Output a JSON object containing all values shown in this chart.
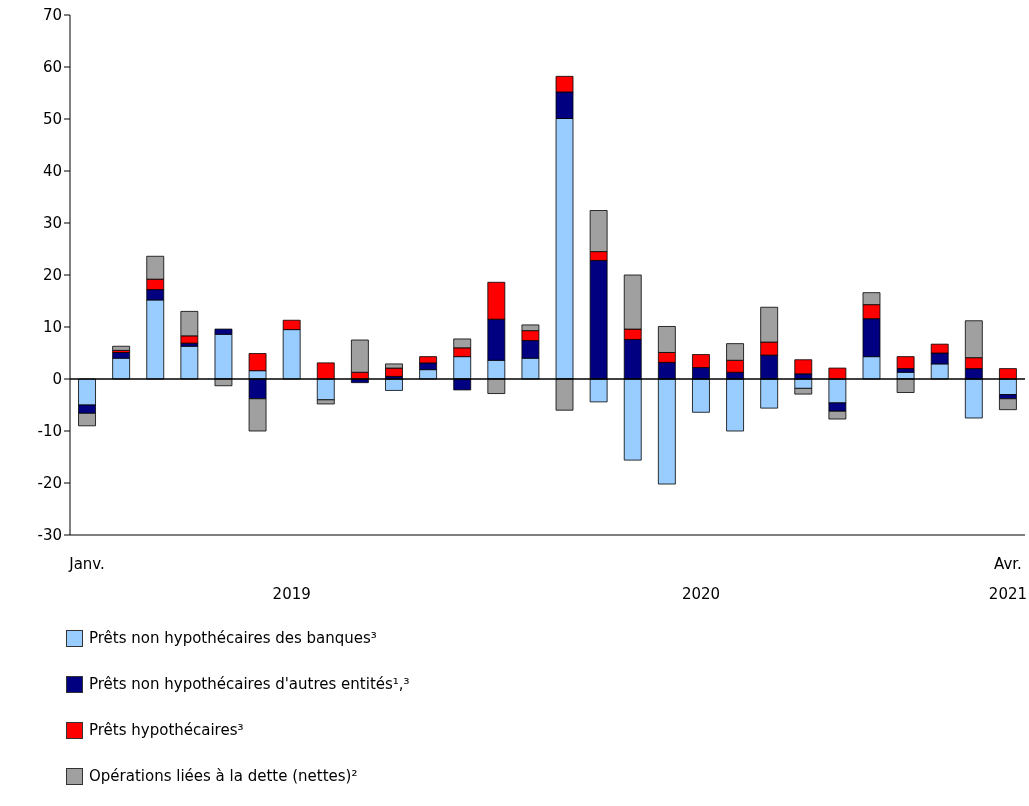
{
  "chart_data": {
    "type": "bar",
    "stacked": true,
    "categories": [
      "Janv.",
      null,
      null,
      null,
      null,
      null,
      null,
      null,
      null,
      null,
      null,
      null,
      null,
      null,
      null,
      null,
      null,
      null,
      null,
      null,
      null,
      null,
      null,
      null,
      null,
      null,
      null,
      "Avr."
    ],
    "series": [
      {
        "name": "Prêts non hypothécaires des banques³",
        "color": "#99ccff",
        "values": [
          -5,
          4,
          15.2,
          6.3,
          8.6,
          1.6,
          9.5,
          -4,
          0,
          -2.2,
          1.8,
          4.3,
          3.6,
          4,
          50.1,
          -4.4,
          -15.6,
          -20.2,
          -6.4,
          -10,
          -5.6,
          -1.8,
          -4.6,
          4.3,
          1.3,
          2.9,
          -7.5,
          -3
        ]
      },
      {
        "name": "Prêts non hypothécaires d'autres entités¹,³",
        "color": "#000080",
        "values": [
          -1.6,
          1.1,
          2,
          0.6,
          1,
          -3.8,
          0,
          0,
          -0.7,
          0.5,
          1.3,
          -2.1,
          7.9,
          3.4,
          5.1,
          22.8,
          7.6,
          3.2,
          2.2,
          1.3,
          4.6,
          1,
          -1.6,
          7.3,
          0.7,
          2.1,
          2,
          -0.8
        ]
      },
      {
        "name": "Prêts hypothécaires³",
        "color": "#ff0000",
        "values": [
          0,
          0.4,
          2,
          1.4,
          0,
          3.3,
          1.8,
          3.1,
          1.3,
          1.6,
          1.2,
          1.7,
          7.1,
          1.9,
          3,
          1.7,
          2,
          1.9,
          2.5,
          2.3,
          2.5,
          2.7,
          2.1,
          2.7,
          2.3,
          1.7,
          2.1,
          2
        ]
      },
      {
        "name": "Opérations liées à la dette (nettes)²",
        "color": "#a0a0a0",
        "values": [
          -2.4,
          0.8,
          4.4,
          4.7,
          -1.3,
          -6.2,
          0,
          -0.8,
          6.2,
          0.8,
          0,
          1.7,
          -2.8,
          1.1,
          -6,
          7.9,
          10.4,
          5,
          0,
          3.2,
          6.7,
          -1.1,
          -1.5,
          2.3,
          -2.6,
          0,
          7.1,
          -2.1
        ]
      }
    ],
    "ylim": [
      -30,
      70
    ],
    "yticks": [
      -30,
      -20,
      -10,
      0,
      10,
      20,
      30,
      40,
      50,
      60,
      70
    ],
    "ref_lines": [
      {
        "axis": "y",
        "value": 0
      }
    ],
    "annotations": [
      "2019",
      "2020",
      "2021"
    ],
    "legend": "bottom",
    "grid": false
  }
}
